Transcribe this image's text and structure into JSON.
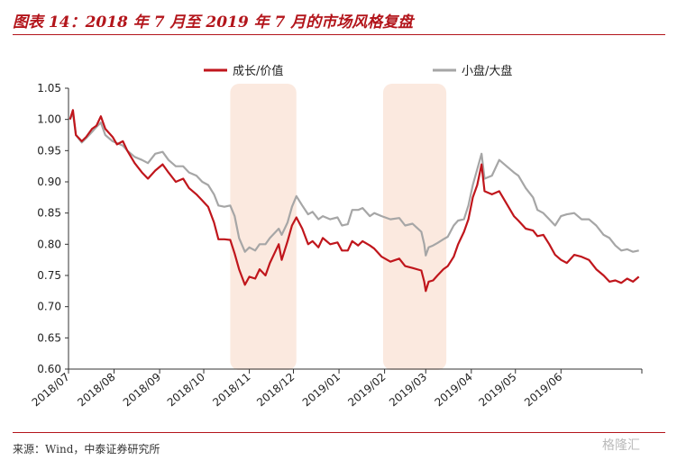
{
  "header": {
    "title": "图表 14：2018 年 7 月至 2019 年 7 月的市场风格复盘"
  },
  "footer": {
    "source": "来源：Wind，中泰证券研究所",
    "watermark": "格隆汇"
  },
  "colors": {
    "accent": "#b3151b",
    "series_red": "#c0161c",
    "series_gray": "#a6a6a6",
    "highlight": "#fbe9df"
  },
  "chart_data": {
    "type": "line",
    "title": "",
    "xlabel": "",
    "ylabel": "",
    "ylim": [
      0.6,
      1.05
    ],
    "yticks": [
      "1.05",
      "1.00",
      "0.95",
      "0.90",
      "0.85",
      "0.80",
      "0.75",
      "0.70",
      "0.65",
      "0.60"
    ],
    "xticks": [
      "2018/07",
      "2018/08",
      "2018/09",
      "2018/10",
      "2018/11",
      "2018/12",
      "2019/01",
      "2019/02",
      "2019/03",
      "2019/04",
      "2019/05",
      "2019/06"
    ],
    "legend_position": "top",
    "highlight_ranges": [
      {
        "from": "2018/10/19",
        "to": "2018/12/03"
      },
      {
        "from": "2019/01/31",
        "to": "2019/03/15"
      }
    ],
    "series": [
      {
        "name": "成长/价值",
        "color": "#c0161c",
        "points": [
          [
            "2018/07/02",
            1.0
          ],
          [
            "2018/07/04",
            1.015
          ],
          [
            "2018/07/06",
            0.975
          ],
          [
            "2018/07/10",
            0.965
          ],
          [
            "2018/07/13",
            0.972
          ],
          [
            "2018/07/17",
            0.985
          ],
          [
            "2018/07/20",
            0.99
          ],
          [
            "2018/07/23",
            1.005
          ],
          [
            "2018/07/26",
            0.985
          ],
          [
            "2018/07/31",
            0.972
          ],
          [
            "2018/08/03",
            0.96
          ],
          [
            "2018/08/07",
            0.965
          ],
          [
            "2018/08/10",
            0.95
          ],
          [
            "2018/08/15",
            0.93
          ],
          [
            "2018/08/20",
            0.915
          ],
          [
            "2018/08/24",
            0.905
          ],
          [
            "2018/08/29",
            0.918
          ],
          [
            "2018/09/03",
            0.928
          ],
          [
            "2018/09/07",
            0.915
          ],
          [
            "2018/09/12",
            0.9
          ],
          [
            "2018/09/17",
            0.905
          ],
          [
            "2018/09/21",
            0.89
          ],
          [
            "2018/09/26",
            0.88
          ],
          [
            "2018/09/30",
            0.87
          ],
          [
            "2018/10/04",
            0.86
          ],
          [
            "2018/10/08",
            0.835
          ],
          [
            "2018/10/11",
            0.808
          ],
          [
            "2018/10/15",
            0.808
          ],
          [
            "2018/10/19",
            0.807
          ],
          [
            "2018/10/22",
            0.785
          ],
          [
            "2018/10/25",
            0.76
          ],
          [
            "2018/10/29",
            0.735
          ],
          [
            "2018/11/01",
            0.748
          ],
          [
            "2018/11/05",
            0.745
          ],
          [
            "2018/11/08",
            0.76
          ],
          [
            "2018/11/12",
            0.75
          ],
          [
            "2018/11/15",
            0.77
          ],
          [
            "2018/11/19",
            0.79
          ],
          [
            "2018/11/21",
            0.8
          ],
          [
            "2018/11/23",
            0.775
          ],
          [
            "2018/11/27",
            0.805
          ],
          [
            "2018/11/30",
            0.83
          ],
          [
            "2018/12/03",
            0.843
          ],
          [
            "2018/12/07",
            0.825
          ],
          [
            "2018/12/11",
            0.8
          ],
          [
            "2018/12/14",
            0.805
          ],
          [
            "2018/12/18",
            0.795
          ],
          [
            "2018/12/21",
            0.81
          ],
          [
            "2018/12/26",
            0.8
          ],
          [
            "2018/12/31",
            0.803
          ],
          [
            "2019/01/03",
            0.79
          ],
          [
            "2019/01/07",
            0.79
          ],
          [
            "2019/01/10",
            0.805
          ],
          [
            "2019/01/14",
            0.798
          ],
          [
            "2019/01/17",
            0.805
          ],
          [
            "2019/01/22",
            0.798
          ],
          [
            "2019/01/25",
            0.793
          ],
          [
            "2019/01/30",
            0.78
          ],
          [
            "2019/02/05",
            0.772
          ],
          [
            "2019/02/11",
            0.777
          ],
          [
            "2019/02/15",
            0.765
          ],
          [
            "2019/02/20",
            0.762
          ],
          [
            "2019/02/26",
            0.758
          ],
          [
            "2019/02/28",
            0.74
          ],
          [
            "2019/03/01",
            0.725
          ],
          [
            "2019/03/03",
            0.74
          ],
          [
            "2019/03/06",
            0.742
          ],
          [
            "2019/03/09",
            0.75
          ],
          [
            "2019/03/13",
            0.76
          ],
          [
            "2019/03/16",
            0.765
          ],
          [
            "2019/03/20",
            0.78
          ],
          [
            "2019/03/23",
            0.8
          ],
          [
            "2019/03/27",
            0.82
          ],
          [
            "2019/03/30",
            0.84
          ],
          [
            "2019/04/02",
            0.875
          ],
          [
            "2019/04/05",
            0.895
          ],
          [
            "2019/04/08",
            0.928
          ],
          [
            "2019/04/10",
            0.885
          ],
          [
            "2019/04/15",
            0.88
          ],
          [
            "2019/04/20",
            0.885
          ],
          [
            "2019/04/25",
            0.865
          ],
          [
            "2019/04/30",
            0.845
          ],
          [
            "2019/05/03",
            0.838
          ],
          [
            "2019/05/08",
            0.825
          ],
          [
            "2019/05/13",
            0.822
          ],
          [
            "2019/05/16",
            0.813
          ],
          [
            "2019/05/20",
            0.815
          ],
          [
            "2019/05/24",
            0.8
          ],
          [
            "2019/05/28",
            0.783
          ],
          [
            "2019/06/01",
            0.775
          ],
          [
            "2019/06/05",
            0.77
          ],
          [
            "2019/06/10",
            0.783
          ],
          [
            "2019/06/15",
            0.78
          ],
          [
            "2019/06/20",
            0.775
          ],
          [
            "2019/06/25",
            0.76
          ],
          [
            "2019/06/30",
            0.75
          ],
          [
            "2019/07/04",
            0.74
          ],
          [
            "2019/07/08",
            0.742
          ],
          [
            "2019/07/12",
            0.738
          ],
          [
            "2019/07/16",
            0.745
          ],
          [
            "2019/07/20",
            0.74
          ],
          [
            "2019/07/24",
            0.748
          ]
        ]
      },
      {
        "name": "小盘/大盘",
        "color": "#a6a6a6",
        "points": [
          [
            "2018/07/02",
            1.0
          ],
          [
            "2018/07/04",
            1.01
          ],
          [
            "2018/07/06",
            0.975
          ],
          [
            "2018/07/10",
            0.963
          ],
          [
            "2018/07/13",
            0.97
          ],
          [
            "2018/07/17",
            0.98
          ],
          [
            "2018/07/20",
            0.988
          ],
          [
            "2018/07/23",
            0.995
          ],
          [
            "2018/07/26",
            0.975
          ],
          [
            "2018/07/31",
            0.965
          ],
          [
            "2018/08/03",
            0.962
          ],
          [
            "2018/08/07",
            0.958
          ],
          [
            "2018/08/10",
            0.95
          ],
          [
            "2018/08/15",
            0.94
          ],
          [
            "2018/08/20",
            0.935
          ],
          [
            "2018/08/24",
            0.93
          ],
          [
            "2018/08/29",
            0.945
          ],
          [
            "2018/09/03",
            0.948
          ],
          [
            "2018/09/07",
            0.935
          ],
          [
            "2018/09/12",
            0.925
          ],
          [
            "2018/09/17",
            0.925
          ],
          [
            "2018/09/21",
            0.915
          ],
          [
            "2018/09/26",
            0.91
          ],
          [
            "2018/09/30",
            0.9
          ],
          [
            "2018/10/04",
            0.895
          ],
          [
            "2018/10/08",
            0.88
          ],
          [
            "2018/10/11",
            0.862
          ],
          [
            "2018/10/15",
            0.86
          ],
          [
            "2018/10/19",
            0.862
          ],
          [
            "2018/10/22",
            0.845
          ],
          [
            "2018/10/25",
            0.81
          ],
          [
            "2018/10/29",
            0.788
          ],
          [
            "2018/11/01",
            0.795
          ],
          [
            "2018/11/05",
            0.79
          ],
          [
            "2018/11/08",
            0.8
          ],
          [
            "2018/11/12",
            0.8
          ],
          [
            "2018/11/15",
            0.81
          ],
          [
            "2018/11/19",
            0.82
          ],
          [
            "2018/11/21",
            0.825
          ],
          [
            "2018/11/23",
            0.815
          ],
          [
            "2018/11/27",
            0.835
          ],
          [
            "2018/11/30",
            0.86
          ],
          [
            "2018/12/03",
            0.877
          ],
          [
            "2018/12/07",
            0.862
          ],
          [
            "2018/12/11",
            0.848
          ],
          [
            "2018/12/14",
            0.852
          ],
          [
            "2018/12/18",
            0.84
          ],
          [
            "2018/12/21",
            0.845
          ],
          [
            "2018/12/26",
            0.84
          ],
          [
            "2018/12/31",
            0.843
          ],
          [
            "2019/01/03",
            0.83
          ],
          [
            "2019/01/07",
            0.832
          ],
          [
            "2019/01/10",
            0.855
          ],
          [
            "2019/01/14",
            0.855
          ],
          [
            "2019/01/17",
            0.858
          ],
          [
            "2019/01/22",
            0.845
          ],
          [
            "2019/01/25",
            0.85
          ],
          [
            "2019/01/30",
            0.845
          ],
          [
            "2019/02/05",
            0.84
          ],
          [
            "2019/02/11",
            0.842
          ],
          [
            "2019/02/15",
            0.83
          ],
          [
            "2019/02/20",
            0.833
          ],
          [
            "2019/02/26",
            0.82
          ],
          [
            "2019/02/28",
            0.8
          ],
          [
            "2019/03/01",
            0.782
          ],
          [
            "2019/03/03",
            0.795
          ],
          [
            "2019/03/06",
            0.798
          ],
          [
            "2019/03/09",
            0.802
          ],
          [
            "2019/03/13",
            0.808
          ],
          [
            "2019/03/16",
            0.812
          ],
          [
            "2019/03/20",
            0.83
          ],
          [
            "2019/03/23",
            0.838
          ],
          [
            "2019/03/27",
            0.84
          ],
          [
            "2019/03/30",
            0.862
          ],
          [
            "2019/04/02",
            0.895
          ],
          [
            "2019/04/05",
            0.92
          ],
          [
            "2019/04/08",
            0.945
          ],
          [
            "2019/04/10",
            0.905
          ],
          [
            "2019/04/15",
            0.91
          ],
          [
            "2019/04/20",
            0.935
          ],
          [
            "2019/04/25",
            0.925
          ],
          [
            "2019/04/30",
            0.915
          ],
          [
            "2019/05/03",
            0.91
          ],
          [
            "2019/05/08",
            0.89
          ],
          [
            "2019/05/13",
            0.875
          ],
          [
            "2019/05/16",
            0.855
          ],
          [
            "2019/05/20",
            0.85
          ],
          [
            "2019/05/24",
            0.84
          ],
          [
            "2019/05/28",
            0.83
          ],
          [
            "2019/06/01",
            0.845
          ],
          [
            "2019/06/05",
            0.848
          ],
          [
            "2019/06/10",
            0.85
          ],
          [
            "2019/06/15",
            0.84
          ],
          [
            "2019/06/20",
            0.84
          ],
          [
            "2019/06/25",
            0.83
          ],
          [
            "2019/06/30",
            0.815
          ],
          [
            "2019/07/04",
            0.81
          ],
          [
            "2019/07/08",
            0.798
          ],
          [
            "2019/07/12",
            0.79
          ],
          [
            "2019/07/16",
            0.792
          ],
          [
            "2019/07/20",
            0.788
          ],
          [
            "2019/07/24",
            0.79
          ]
        ]
      }
    ]
  }
}
